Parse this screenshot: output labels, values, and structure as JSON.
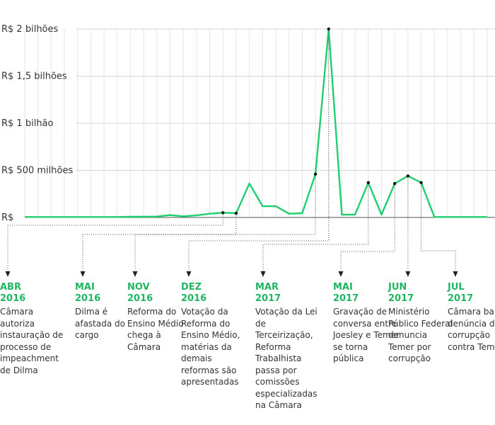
{
  "chart_data": {
    "type": "line",
    "title": "",
    "xlabel": "",
    "ylabel": "",
    "ylim": [
      0,
      2000000000
    ],
    "grid": true,
    "line_color": "#1fcf6f",
    "date_color": "#1fb562",
    "y_ticks": [
      {
        "value": 0,
        "label": "R$"
      },
      {
        "value": 500000000,
        "label": "R$ 500 milhões"
      },
      {
        "value": 1000000000,
        "label": "R$ 1 bilhão"
      },
      {
        "value": 1500000000,
        "label": "R$ 1,5 bilhões"
      },
      {
        "value": 2000000000,
        "label": "R$ 2 bilhões"
      }
    ],
    "x": [
      "2015-01",
      "2015-02",
      "2015-03",
      "2015-04",
      "2015-05",
      "2015-06",
      "2015-07",
      "2015-08",
      "2015-09",
      "2015-10",
      "2015-11",
      "2015-12",
      "2016-01",
      "2016-02",
      "2016-03",
      "2016-04",
      "2016-05",
      "2016-06",
      "2016-07",
      "2016-08",
      "2016-09",
      "2016-10",
      "2016-11",
      "2016-12",
      "2017-01",
      "2017-02",
      "2017-03",
      "2017-04",
      "2017-05",
      "2017-06",
      "2017-07",
      "2017-08",
      "2017-09",
      "2017-10",
      "2017-11",
      "2017-12"
    ],
    "values": [
      5000000,
      5000000,
      5000000,
      5000000,
      5000000,
      5000000,
      5000000,
      5000000,
      8000000,
      8000000,
      10000000,
      25000000,
      12000000,
      22000000,
      40000000,
      50000000,
      45000000,
      360000000,
      120000000,
      120000000,
      40000000,
      45000000,
      460000000,
      2000000000,
      30000000,
      30000000,
      370000000,
      30000000,
      360000000,
      440000000,
      370000000,
      5000000,
      5000000,
      5000000,
      5000000,
      5000000
    ],
    "events": [
      {
        "date": "ABR\n2016",
        "x": "2016-04",
        "text": "Câmara autoriza instauração de processo de impeachment de Dilma"
      },
      {
        "date": "MAI\n2016",
        "x": "2016-05",
        "text": "Dilma é afastada do cargo"
      },
      {
        "date": "NOV\n2016",
        "x": "2016-11",
        "text": "Reforma do Ensino Médio chega à Câmara"
      },
      {
        "date": "DEZ\n2016",
        "x": "2016-12",
        "text": "Votação da Reforma do Ensino Médio, matérias da demais reformas são apresentadas"
      },
      {
        "date": "MAR\n2017",
        "x": "2017-03",
        "text": "Votação da Lei de Terceirização, Reforma Trabalhista passa por comissões especializadas na Câmara"
      },
      {
        "date": "MAI\n2017",
        "x": "2017-05",
        "text": "Gravação de conversa entre Joesley e Temer se torna pública"
      },
      {
        "date": "JUN\n2017",
        "x": "2017-06",
        "text": "Ministério Público Federal denuncia Temer por corrupção"
      },
      {
        "date": "JUL\n2017",
        "x": "2017-07",
        "text": "Câmara barra denúncia de corrupção contra Temer"
      }
    ]
  }
}
